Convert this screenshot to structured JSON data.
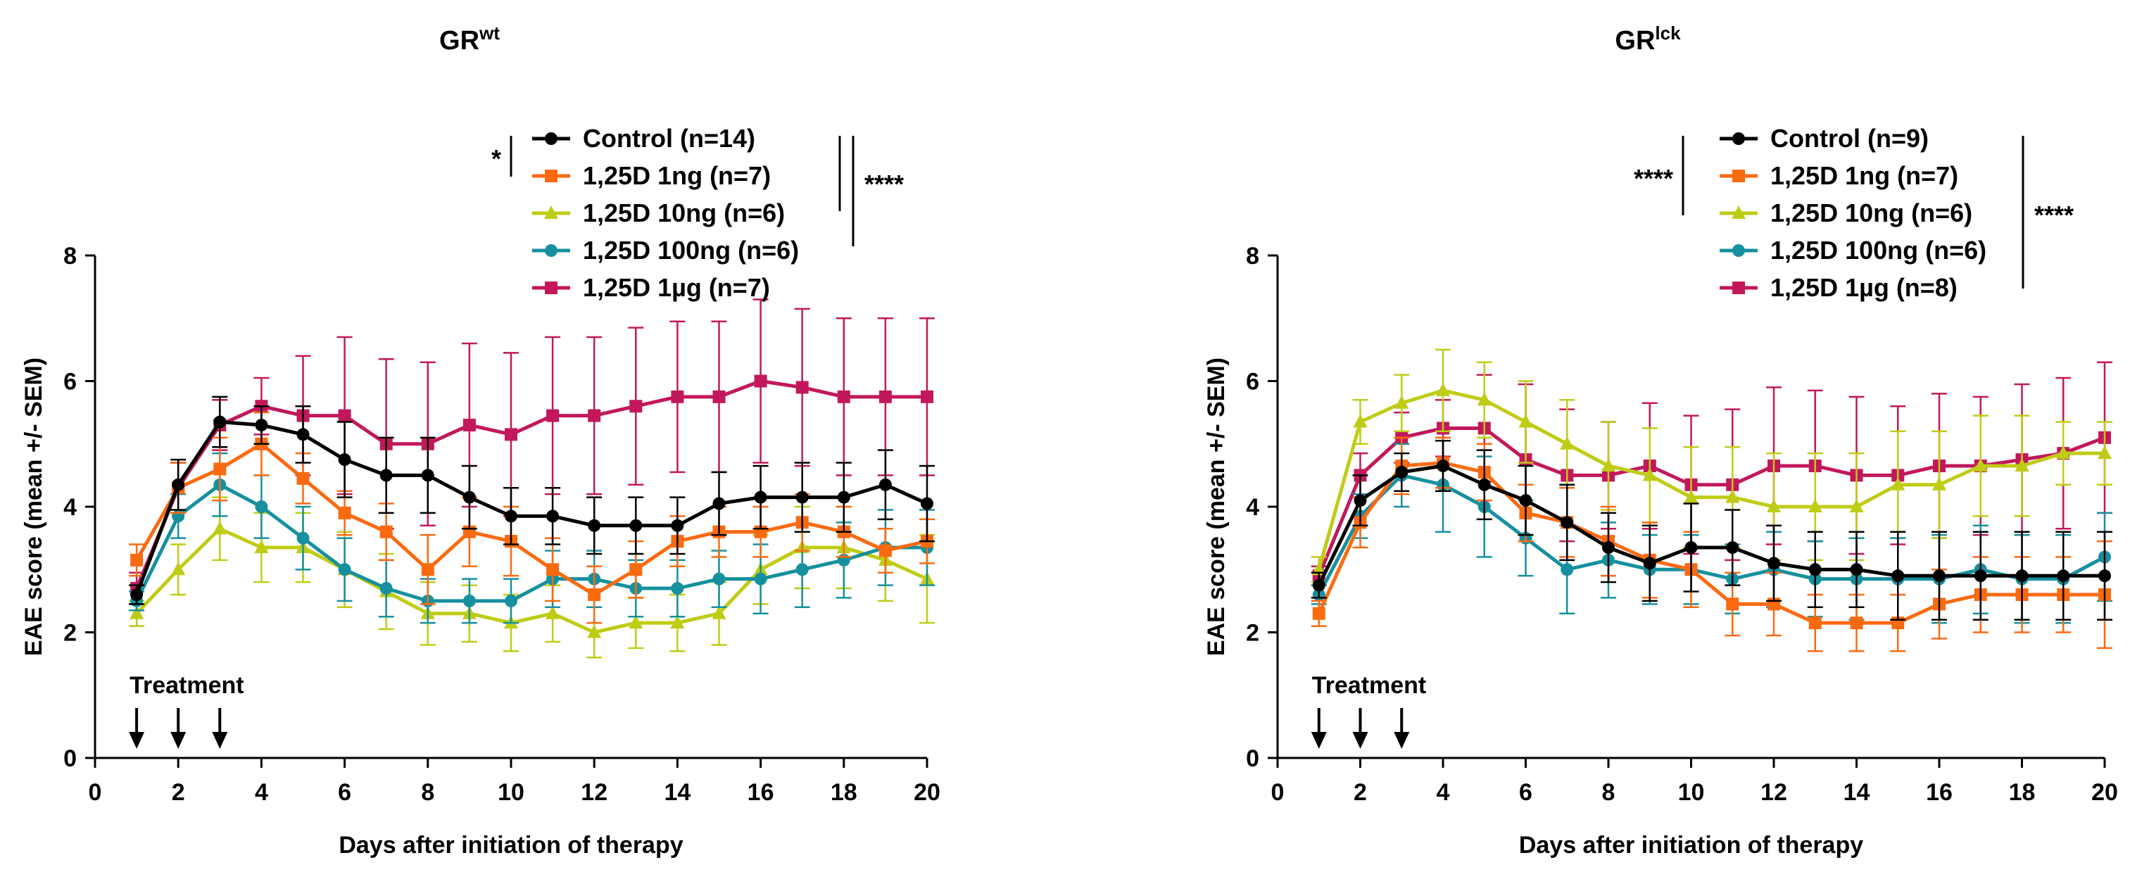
{
  "colors": {
    "control": "#000000",
    "d1ng": "#fa6a10",
    "d10ng": "#bfcc15",
    "d100ng": "#16909e",
    "d1ug": "#c2185b"
  },
  "chart_data": [
    {
      "type": "line",
      "title": "GR",
      "title_sup": "wt",
      "xlabel": "Days after initiation of therapy",
      "ylabel": "EAE score (mean +/- SEM)",
      "xlim": [
        0,
        20
      ],
      "ylim": [
        0,
        8
      ],
      "xticks": [
        0,
        2,
        4,
        6,
        8,
        10,
        12,
        14,
        16,
        18,
        20
      ],
      "yticks": [
        0,
        2,
        4,
        6,
        8
      ],
      "x": [
        1,
        2,
        3,
        4,
        5,
        6,
        7,
        8,
        9,
        10,
        11,
        12,
        13,
        14,
        15,
        16,
        17,
        18,
        19,
        20
      ],
      "treatment_label": "Treatment",
      "treatment_days": [
        1,
        2,
        3
      ],
      "series": [
        {
          "key": "control",
          "name": "Control (n=14)",
          "marker": "circle",
          "values": [
            2.6,
            4.35,
            5.35,
            5.3,
            5.15,
            4.75,
            4.5,
            4.5,
            4.15,
            3.85,
            3.85,
            3.7,
            3.7,
            3.7,
            4.05,
            4.15,
            4.15,
            4.15,
            4.35,
            4.05
          ],
          "errors": [
            0.15,
            0.4,
            0.4,
            0.3,
            0.45,
            0.6,
            0.6,
            0.6,
            0.5,
            0.45,
            0.45,
            0.45,
            0.45,
            0.45,
            0.5,
            0.5,
            0.55,
            0.55,
            0.55,
            0.6
          ]
        },
        {
          "key": "d1ng",
          "name": "1,25D 1ng (n=7)",
          "marker": "square",
          "values": [
            3.15,
            4.3,
            4.6,
            5.0,
            4.45,
            3.9,
            3.6,
            3.0,
            3.6,
            3.45,
            3.0,
            2.6,
            3.0,
            3.45,
            3.6,
            3.6,
            3.75,
            3.6,
            3.3,
            3.45
          ],
          "errors": [
            0.25,
            0.4,
            0.5,
            0.5,
            0.4,
            0.35,
            0.45,
            0.55,
            0.55,
            0.55,
            0.5,
            0.45,
            0.45,
            0.4,
            0.4,
            0.4,
            0.45,
            0.4,
            0.35,
            0.35
          ]
        },
        {
          "key": "d10ng",
          "name": "1,25D 10ng (n=6)",
          "marker": "triangle",
          "values": [
            2.3,
            3.0,
            3.65,
            3.35,
            3.35,
            3.0,
            2.65,
            2.3,
            2.3,
            2.15,
            2.3,
            2.0,
            2.15,
            2.15,
            2.3,
            3.0,
            3.35,
            3.35,
            3.15,
            2.85
          ],
          "errors": [
            0.2,
            0.4,
            0.5,
            0.55,
            0.55,
            0.6,
            0.6,
            0.5,
            0.45,
            0.45,
            0.45,
            0.4,
            0.4,
            0.45,
            0.5,
            0.55,
            0.65,
            0.65,
            0.65,
            0.7
          ]
        },
        {
          "key": "d100ng",
          "name": "1,25D 100ng (n=6)",
          "marker": "circle",
          "values": [
            2.5,
            3.85,
            4.35,
            4.0,
            3.5,
            3.0,
            2.7,
            2.5,
            2.5,
            2.5,
            2.85,
            2.85,
            2.7,
            2.7,
            2.85,
            2.85,
            3.0,
            3.15,
            3.35,
            3.35
          ],
          "errors": [
            0.15,
            0.35,
            0.5,
            0.5,
            0.5,
            0.5,
            0.45,
            0.35,
            0.35,
            0.35,
            0.45,
            0.45,
            0.45,
            0.45,
            0.45,
            0.55,
            0.6,
            0.6,
            0.6,
            0.6
          ]
        },
        {
          "key": "d1ug",
          "name": "1,25D 1µg (n=7)",
          "marker": "square",
          "values": [
            2.7,
            4.3,
            5.3,
            5.6,
            5.45,
            5.45,
            5.0,
            5.0,
            5.3,
            5.15,
            5.45,
            5.45,
            5.6,
            5.75,
            5.75,
            6.0,
            5.9,
            5.75,
            5.75,
            5.75
          ],
          "errors": [
            0.25,
            0.4,
            0.4,
            0.45,
            0.95,
            1.25,
            1.35,
            1.3,
            1.3,
            1.3,
            1.25,
            1.25,
            1.25,
            1.2,
            1.2,
            1.3,
            1.25,
            1.25,
            1.25,
            1.25
          ]
        }
      ],
      "significance": [
        {
          "label": "*",
          "between": [
            "control",
            "d1ng"
          ]
        },
        {
          "label": "****",
          "between": [
            "control",
            "d10ng"
          ]
        }
      ]
    },
    {
      "type": "line",
      "title": "GR",
      "title_sup": "lck",
      "xlabel": "Days after initiation of therapy",
      "ylabel": "EAE score (mean +/- SEM)",
      "xlim": [
        0,
        20
      ],
      "ylim": [
        0,
        8
      ],
      "xticks": [
        0,
        2,
        4,
        6,
        8,
        10,
        12,
        14,
        16,
        18,
        20
      ],
      "yticks": [
        0,
        2,
        4,
        6,
        8
      ],
      "x": [
        1,
        2,
        3,
        4,
        5,
        6,
        7,
        8,
        9,
        10,
        11,
        12,
        13,
        14,
        15,
        16,
        17,
        18,
        19,
        20
      ],
      "treatment_label": "Treatment",
      "treatment_days": [
        1,
        2,
        3
      ],
      "series": [
        {
          "key": "control",
          "name": "Control (n=9)",
          "marker": "circle",
          "values": [
            2.75,
            4.1,
            4.55,
            4.65,
            4.35,
            4.1,
            3.75,
            3.35,
            3.1,
            3.35,
            3.35,
            3.1,
            3.0,
            3.0,
            2.9,
            2.9,
            2.9,
            2.9,
            2.9,
            2.9
          ],
          "errors": [
            0.2,
            0.4,
            0.3,
            0.4,
            0.55,
            0.55,
            0.6,
            0.55,
            0.6,
            0.7,
            0.6,
            0.6,
            0.6,
            0.6,
            0.7,
            0.7,
            0.7,
            0.7,
            0.7,
            0.7
          ]
        },
        {
          "key": "d1ng",
          "name": "1,25D 1ng (n=7)",
          "marker": "square",
          "values": [
            2.3,
            3.75,
            4.65,
            4.7,
            4.55,
            3.9,
            3.75,
            3.45,
            3.15,
            3.0,
            2.45,
            2.45,
            2.15,
            2.15,
            2.15,
            2.45,
            2.6,
            2.6,
            2.6,
            2.6
          ],
          "errors": [
            0.2,
            0.4,
            0.45,
            0.4,
            0.45,
            0.45,
            0.55,
            0.55,
            0.6,
            0.6,
            0.5,
            0.5,
            0.45,
            0.45,
            0.45,
            0.55,
            0.6,
            0.6,
            0.6,
            0.85
          ]
        },
        {
          "key": "d10ng",
          "name": "1,25D 10ng (n=6)",
          "marker": "triangle",
          "values": [
            3.0,
            5.35,
            5.65,
            5.85,
            5.7,
            5.35,
            5.0,
            4.65,
            4.5,
            4.15,
            4.15,
            4.0,
            4.0,
            4.0,
            4.35,
            4.35,
            4.65,
            4.65,
            4.85,
            4.85
          ],
          "errors": [
            0.2,
            0.35,
            0.45,
            0.65,
            0.6,
            0.65,
            0.7,
            0.7,
            0.75,
            0.8,
            0.8,
            0.85,
            0.85,
            0.85,
            0.85,
            0.85,
            0.8,
            0.8,
            0.5,
            0.5
          ]
        },
        {
          "key": "d100ng",
          "name": "1,25D 100ng (n=6)",
          "marker": "circle",
          "values": [
            2.6,
            3.85,
            4.5,
            4.35,
            4.0,
            3.5,
            3.0,
            3.15,
            3.0,
            3.0,
            2.85,
            3.0,
            2.85,
            2.85,
            2.85,
            2.85,
            3.0,
            2.85,
            2.85,
            3.2
          ],
          "errors": [
            0.15,
            0.35,
            0.5,
            0.75,
            0.8,
            0.6,
            0.7,
            0.6,
            0.55,
            0.55,
            0.55,
            0.6,
            0.6,
            0.65,
            0.65,
            0.7,
            0.7,
            0.7,
            0.7,
            0.7
          ]
        },
        {
          "key": "d1ug",
          "name": "1,25D 1µg (n=8)",
          "marker": "square",
          "values": [
            2.9,
            4.5,
            5.1,
            5.25,
            5.25,
            4.75,
            4.5,
            4.5,
            4.65,
            4.35,
            4.35,
            4.65,
            4.65,
            4.5,
            4.5,
            4.65,
            4.65,
            4.75,
            4.85,
            5.1
          ],
          "errors": [
            0.15,
            0.35,
            0.4,
            0.45,
            0.85,
            1.2,
            1.05,
            0.85,
            1.0,
            1.1,
            1.2,
            1.25,
            1.2,
            1.25,
            1.1,
            1.15,
            1.1,
            1.2,
            1.2,
            1.2
          ]
        }
      ],
      "significance": [
        {
          "label": "****",
          "between": [
            "control",
            "d1ng"
          ]
        },
        {
          "label": "****",
          "between": [
            "control",
            "d1ug"
          ]
        }
      ]
    }
  ]
}
